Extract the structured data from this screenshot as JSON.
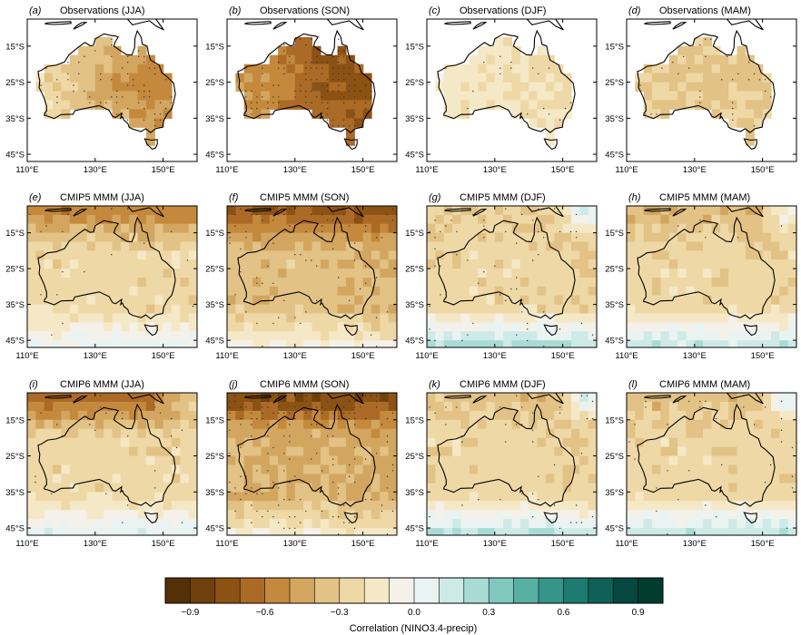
{
  "panels": [
    {
      "letter": "(a)",
      "title": "Observations (JJA)",
      "kind": "obs",
      "base": -0.35,
      "north": 0.0,
      "south": 0.05,
      "west": 0.15,
      "east": -0.25,
      "coastTint": 0.0,
      "stipple": 0.55,
      "ne": 0.0
    },
    {
      "letter": "(b)",
      "title": "Observations (SON)",
      "kind": "obs",
      "base": -0.55,
      "north": -0.15,
      "south": 0.1,
      "west": 0.05,
      "east": -0.25,
      "coastTint": 0.0,
      "stipple": 0.85,
      "ne": 0.0
    },
    {
      "letter": "(c)",
      "title": "Observations (DJF)",
      "kind": "obs",
      "base": -0.15,
      "north": -0.05,
      "south": 0.1,
      "west": 0.0,
      "east": -0.1,
      "coastTint": 0.0,
      "stipple": 0.15,
      "ne": 0.0
    },
    {
      "letter": "(d)",
      "title": "Observations (MAM)",
      "kind": "obs",
      "base": -0.3,
      "north": -0.05,
      "south": 0.05,
      "west": 0.0,
      "east": -0.05,
      "coastTint": 0.0,
      "stipple": 0.3,
      "ne": 0.0
    },
    {
      "letter": "(e)",
      "title": "CMIP5 MMM (JJA)",
      "kind": "model",
      "base": -0.25,
      "north": -0.35,
      "south": 0.3,
      "west": 0.0,
      "east": 0.0,
      "coastTint": 0.0,
      "stipple": 0.05,
      "ne": 0.0
    },
    {
      "letter": "(f)",
      "title": "CMIP5 MMM (SON)",
      "kind": "model",
      "base": -0.35,
      "north": -0.4,
      "south": 0.3,
      "west": 0.0,
      "east": -0.05,
      "coastTint": 0.0,
      "stipple": 0.25,
      "ne": 0.0
    },
    {
      "letter": "(g)",
      "title": "CMIP5 MMM (DJF)",
      "kind": "model",
      "base": -0.25,
      "north": -0.05,
      "south": 0.55,
      "west": 0.0,
      "east": -0.05,
      "coastTint": 0.0,
      "stipple": 0.2,
      "ne": 0.5
    },
    {
      "letter": "(h)",
      "title": "CMIP5 MMM (MAM)",
      "kind": "model",
      "base": -0.25,
      "north": -0.15,
      "south": 0.45,
      "west": 0.0,
      "east": 0.0,
      "coastTint": 0.0,
      "stipple": 0.03,
      "ne": 0.35
    },
    {
      "letter": "(i)",
      "title": "CMIP6 MMM (JJA)",
      "kind": "model",
      "base": -0.25,
      "north": -0.45,
      "south": 0.35,
      "west": 0.0,
      "east": 0.0,
      "coastTint": 0.0,
      "stipple": 0.1,
      "ne": 0.4
    },
    {
      "letter": "(j)",
      "title": "CMIP6 MMM (SON)",
      "kind": "model",
      "base": -0.4,
      "north": -0.4,
      "south": 0.3,
      "west": 0.0,
      "east": -0.05,
      "coastTint": 0.0,
      "stipple": 0.55,
      "ne": 0.0
    },
    {
      "letter": "(k)",
      "title": "CMIP6 MMM (DJF)",
      "kind": "model",
      "base": -0.25,
      "north": -0.1,
      "south": 0.5,
      "west": 0.0,
      "east": -0.05,
      "coastTint": 0.0,
      "stipple": 0.15,
      "ne": 0.55
    },
    {
      "letter": "(l)",
      "title": "CMIP6 MMM (MAM)",
      "kind": "model",
      "base": -0.25,
      "north": -0.15,
      "south": 0.45,
      "west": 0.0,
      "east": 0.0,
      "coastTint": 0.0,
      "stipple": 0.1,
      "ne": 0.5
    }
  ],
  "lat_ticks": [
    "15°S",
    "25°S",
    "35°S",
    "45°S"
  ],
  "lon_ticks": [
    "110°E",
    "130°E",
    "150°E"
  ],
  "colorbar": {
    "label": "Correlation (NINO3.4-precip)",
    "tick_labels": [
      "−0.9",
      "−0.6",
      "−0.3",
      "0.0",
      "0.3",
      "0.6",
      "0.9"
    ],
    "colors": [
      "#543005",
      "#6e410c",
      "#8c5214",
      "#ab6a26",
      "#c4893c",
      "#d3a660",
      "#e2c285",
      "#eed8a6",
      "#f5e8c6",
      "#f4f1ea",
      "#e9f3f2",
      "#cdeae6",
      "#a8dbd4",
      "#80c8bd",
      "#58b0a3",
      "#35958a",
      "#1d7a70",
      "#0f6158",
      "#06483f",
      "#003c30"
    ]
  }
}
